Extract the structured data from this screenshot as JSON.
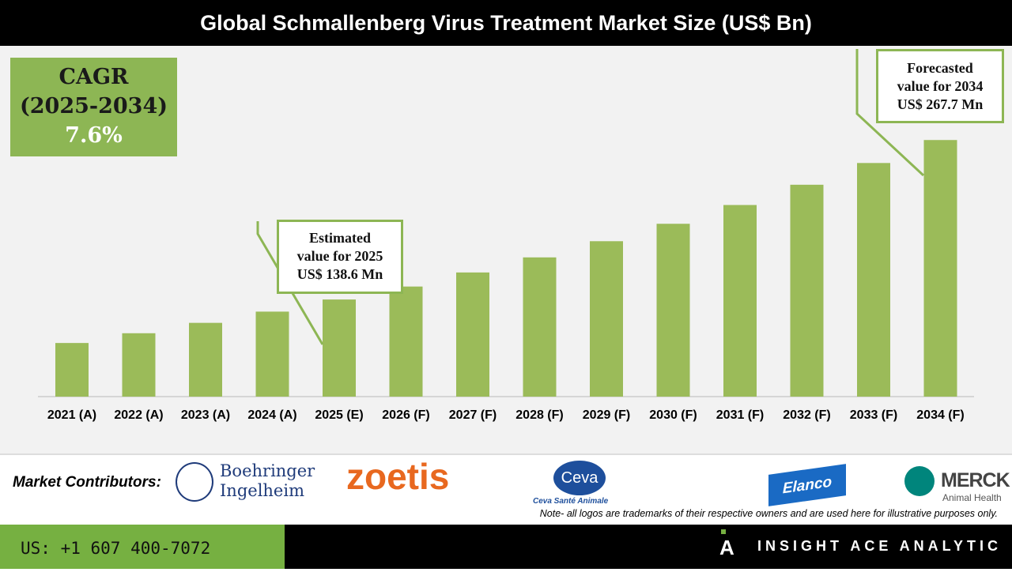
{
  "title": "Global Schmallenberg Virus Treatment Market Size (US$ Bn)",
  "cagr": {
    "label": "CAGR",
    "period": "(2025-2034)",
    "value": "7.6%"
  },
  "callouts": {
    "estimated": [
      "Estimated",
      "value for 2025",
      "US$ 138.6 Mn"
    ],
    "forecasted": [
      "Forecasted",
      "value for 2034",
      "US$ 267.7 Mn"
    ]
  },
  "chart_data": {
    "type": "bar",
    "title": "Global Schmallenberg Virus Treatment Market Size (US$ Bn)",
    "categories": [
      "2021 (A)",
      "2022 (A)",
      "2023 (A)",
      "2024 (A)",
      "2025 (E)",
      "2026 (F)",
      "2027 (F)",
      "2028 (F)",
      "2029 (F)",
      "2030 (F)",
      "2031 (F)",
      "2032 (F)",
      "2033 (F)",
      "2034 (F)"
    ],
    "values": [
      103.4,
      111.3,
      119.7,
      128.8,
      138.6,
      149.1,
      160.5,
      172.7,
      185.8,
      199.9,
      215.1,
      231.5,
      249.1,
      267.7
    ],
    "ylim": [
      60,
      280
    ],
    "xlabel": "",
    "ylabel": "",
    "grid": false,
    "bar_color": "#9bbb59"
  },
  "contributors": {
    "label": "Market Contributors:",
    "logos": [
      "Boehringer Ingelheim",
      "zoetis",
      "Ceva",
      "Ceva Santé Animale",
      "Elanco",
      "MERCK",
      "Animal Health"
    ],
    "note": "Note- all logos are trademarks of their respective owners and are used here for illustrative purposes only."
  },
  "footer": {
    "phone": "US: +1 607 400-7072",
    "brand": "INSIGHT ACE ANALYTIC"
  }
}
